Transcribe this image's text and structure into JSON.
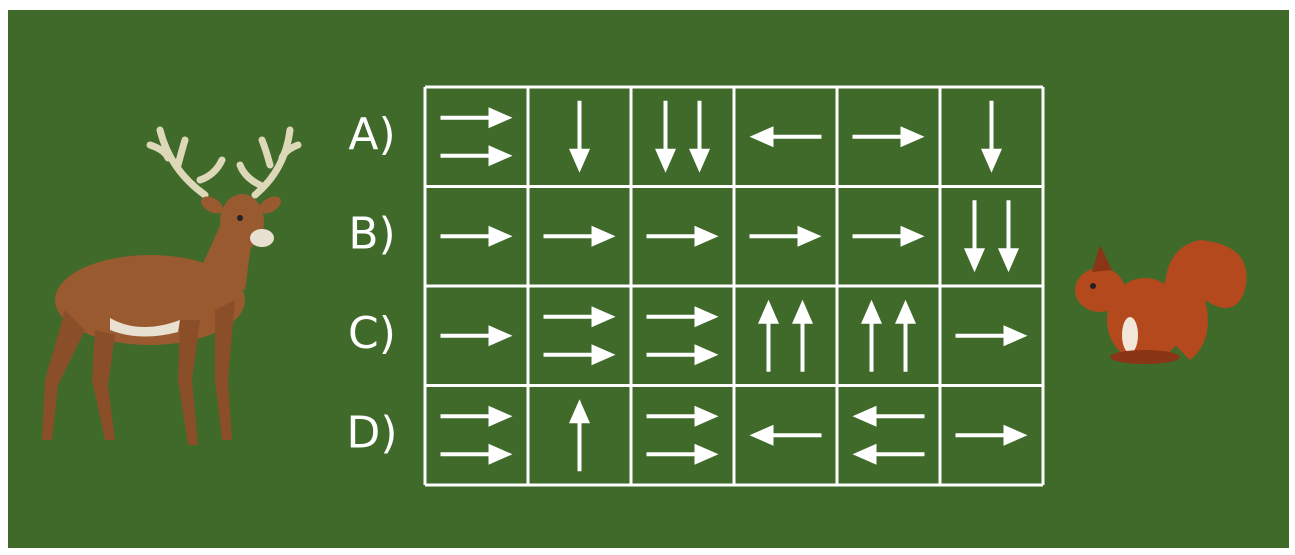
{
  "row_labels": [
    "A)",
    "B)",
    "C)",
    "D)"
  ]
}
